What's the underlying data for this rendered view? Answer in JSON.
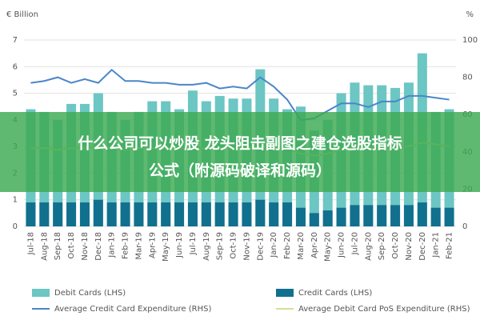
{
  "chart_data": {
    "type": "bar_line",
    "y_label": "€ Billion",
    "y2_label": "%",
    "categories": [
      "Jul-18",
      "Aug-18",
      "Sep-18",
      "Oct-18",
      "Nov-18",
      "Dec-18",
      "Jan-19",
      "Feb-19",
      "Mar-19",
      "Apr-19",
      "May-19",
      "Jun-19",
      "Jul-19",
      "Aug-19",
      "Sep-19",
      "Oct-19",
      "Nov-19",
      "Dec-19",
      "Jan-20",
      "Feb-20",
      "Mar-20",
      "Apr-20",
      "May-20",
      "Jun-20",
      "Jul-20",
      "Aug-20",
      "Sep-20",
      "Oct-20",
      "Nov-20",
      "Dec-20",
      "Jan-21",
      "Feb-21"
    ],
    "series": [
      {
        "name": "Debit Cards (LHS)",
        "kind": "bar",
        "color": "#6cc6c3",
        "values": [
          4.4,
          4.3,
          4.0,
          4.6,
          4.6,
          5.0,
          4.3,
          4.0,
          4.3,
          4.7,
          4.7,
          4.4,
          5.1,
          4.7,
          4.9,
          4.8,
          4.8,
          5.9,
          4.8,
          4.4,
          4.5,
          3.6,
          4.0,
          5.0,
          5.4,
          5.3,
          5.3,
          5.2,
          5.4,
          6.5,
          4.3,
          4.4
        ]
      },
      {
        "name": "Credit Cards (LHS)",
        "kind": "bar",
        "color": "#11708e",
        "values": [
          0.9,
          0.9,
          0.9,
          0.9,
          0.9,
          1.0,
          0.9,
          0.9,
          0.9,
          0.9,
          0.9,
          0.9,
          0.9,
          0.9,
          0.9,
          0.9,
          0.9,
          1.0,
          0.9,
          0.9,
          0.7,
          0.5,
          0.6,
          0.7,
          0.8,
          0.8,
          0.8,
          0.8,
          0.8,
          0.9,
          0.7,
          0.7
        ]
      },
      {
        "name": "Average Credit Card Expenditure (RHS)",
        "kind": "line",
        "axis": "y2",
        "color": "#4a86c8",
        "values": [
          77,
          78,
          80,
          77,
          79,
          77,
          84,
          78,
          78,
          77,
          77,
          76,
          76,
          77,
          74,
          75,
          74,
          80,
          75,
          68,
          57,
          58,
          62,
          66,
          66,
          64,
          67,
          67,
          70,
          70,
          69,
          68
        ]
      },
      {
        "name": "Average Debit Card PoS Expenditure (RHS)",
        "kind": "line",
        "axis": "y2",
        "color": "#d6dc9c",
        "values": [
          42,
          42,
          41,
          42,
          42,
          43,
          42,
          41,
          42,
          42,
          42,
          42,
          42,
          42,
          42,
          42,
          42,
          43,
          42,
          42,
          39,
          38,
          39,
          41,
          42,
          42,
          42,
          42,
          43,
          45,
          44,
          43
        ]
      }
    ],
    "ylim": [
      0,
      7
    ],
    "yticks": [
      0,
      1,
      2,
      3,
      4,
      5,
      6,
      7
    ],
    "y2lim": [
      0,
      100
    ],
    "y2ticks": [
      0,
      20,
      40,
      60,
      80,
      100
    ]
  },
  "banner": {
    "lines": [
      "什么公司可以炒股 龙头阻击副图之建仓选股指标",
      "公式（附源码破译和源码）"
    ]
  }
}
